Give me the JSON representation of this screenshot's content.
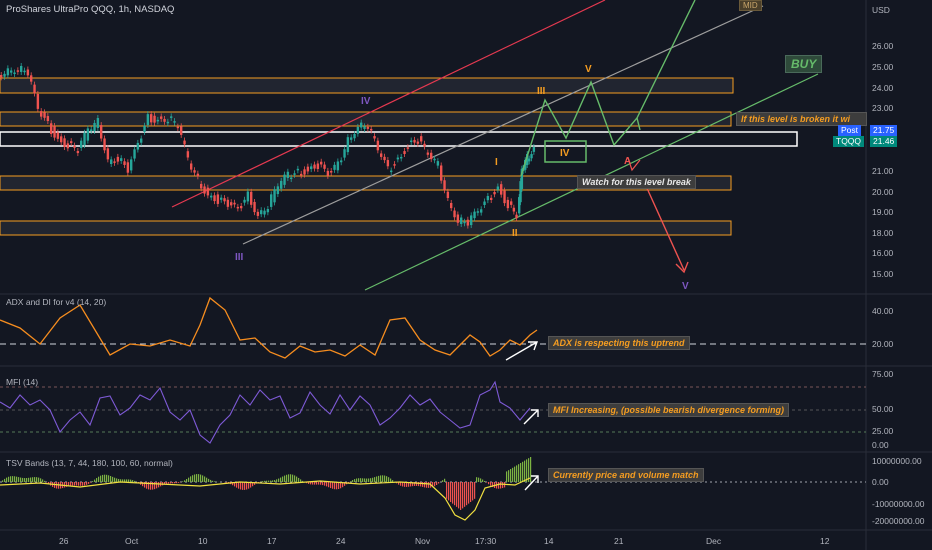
{
  "header": {
    "title": "ProShares UltraPro QQQ, 1h, NASDAQ"
  },
  "price_axis": {
    "currency": "USD",
    "ticks": [
      "26.00",
      "25.00",
      "24.00",
      "23.00",
      "22.00",
      "21.00",
      "20.00",
      "19.00",
      "18.00",
      "17.00",
      "16.00",
      "15.00"
    ]
  },
  "price_tags": {
    "post_label": "Post",
    "post_value": "21.75",
    "symbol_label": "TQQQ",
    "symbol_value": "21.46"
  },
  "annotations": {
    "mid": "MID",
    "buy": "BUY",
    "level_break_warning": "If this level is broken it wi",
    "watch_level": "Watch for this level break",
    "adx_note": "ADX  is respecting this uptrend",
    "mfi_note": "MFI Increasing, (possible bearish divergence forming)",
    "tsv_note": "Currently price and volume match"
  },
  "waves": {
    "iii_low": "III",
    "iv_top": "IV",
    "i_small": "I",
    "ii_small": "II",
    "iii_proj": "III",
    "v_proj": "V",
    "iv_proj": "IV",
    "a_proj": "A",
    "v_target": "V"
  },
  "indicators": {
    "adx": {
      "label": "ADX and DI for v4 (14, 20)",
      "ticks": [
        "40.00",
        "20.00"
      ]
    },
    "mfi": {
      "label": "MFI (14)",
      "ticks": [
        "75.00",
        "50.00",
        "25.00",
        "0.00"
      ]
    },
    "tsv": {
      "label": "TSV Bands (13, 7, 44, 180, 100, 60, normal)",
      "ticks": [
        "10000000.00",
        "0.00",
        "-10000000.00",
        "-20000000.00"
      ]
    }
  },
  "time_axis": {
    "labels": [
      "26",
      "Oct",
      "10",
      "17",
      "24",
      "Nov",
      "17:30",
      "14",
      "21",
      "Dec",
      "12"
    ]
  },
  "colors": {
    "background": "#131722",
    "up_candle": "#26a69a",
    "down_candle": "#ef5350",
    "zone_border": "#f59d21",
    "wave_orange": "#f59d21",
    "wave_purple": "#7e57c2",
    "adx_line": "#f68d1f",
    "mfi_line": "#7e5ad6",
    "green_proj": "#66bb6a",
    "red_proj": "#ef5350"
  }
}
